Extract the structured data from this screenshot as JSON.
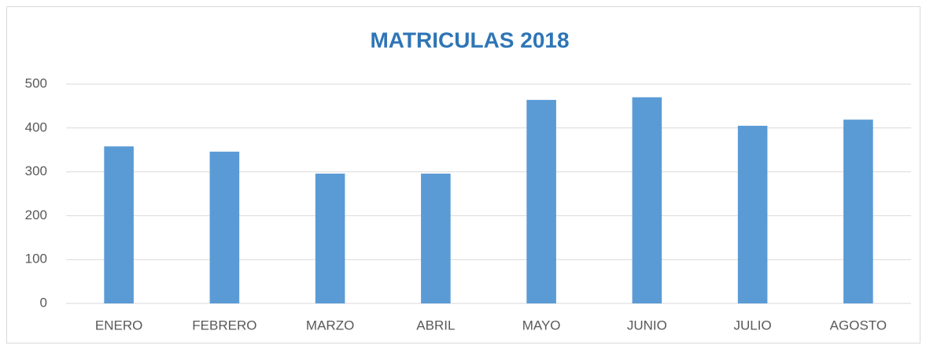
{
  "chart_data": {
    "type": "bar",
    "title": "MATRICULAS 2018",
    "categories": [
      "ENERO",
      "FEBRERO",
      "MARZO",
      "ABRIL",
      "MAYO",
      "JUNIO",
      "JULIO",
      "AGOSTO"
    ],
    "values": [
      358,
      346,
      296,
      296,
      464,
      470,
      405,
      419
    ],
    "color": "#5b9bd5",
    "ylim": [
      0,
      500
    ],
    "yticks": [
      0,
      100,
      200,
      300,
      400,
      500
    ],
    "grid": true
  }
}
